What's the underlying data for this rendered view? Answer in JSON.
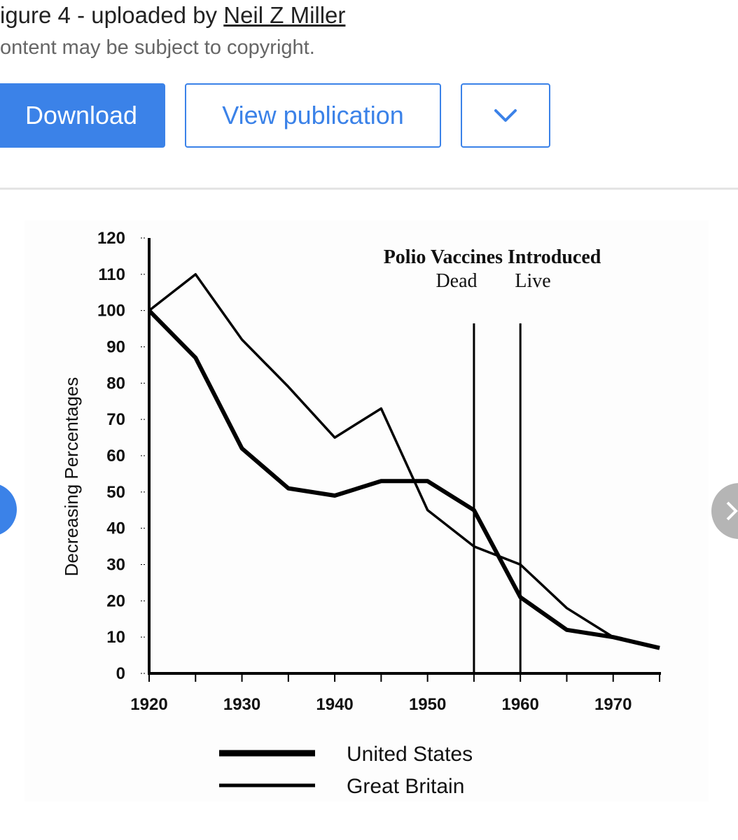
{
  "header": {
    "caption_prefix": "igure 4 - uploaded by ",
    "author": "Neil Z Miller",
    "copyright": "ontent may be subject to copyright."
  },
  "actions": {
    "download_label": "Download",
    "view_label": "View publication",
    "more_icon": "chevron-down-icon"
  },
  "colors": {
    "accent": "#3b82e8",
    "nav_right": "#b5b5b5"
  },
  "chart_data": {
    "type": "line",
    "title": "Polio Vaccines Introduced",
    "annotations": [
      {
        "label": "Dead",
        "x": 1955
      },
      {
        "label": "Live",
        "x": 1960
      }
    ],
    "xlabel": "",
    "ylabel": "Decreasing Percentages",
    "xlim": [
      1920,
      1975
    ],
    "ylim": [
      0,
      120
    ],
    "xticks": [
      1920,
      1930,
      1940,
      1950,
      1960,
      1970
    ],
    "yticks": [
      0,
      10,
      20,
      30,
      40,
      50,
      60,
      70,
      80,
      90,
      100,
      110,
      120
    ],
    "legend_position": "bottom-center",
    "series": [
      {
        "name": "United States",
        "style": "thick",
        "points": [
          [
            1920,
            100
          ],
          [
            1925,
            87
          ],
          [
            1930,
            62
          ],
          [
            1935,
            51
          ],
          [
            1940,
            49
          ],
          [
            1945,
            53
          ],
          [
            1950,
            53
          ],
          [
            1955,
            45
          ],
          [
            1960,
            21
          ],
          [
            1965,
            12
          ],
          [
            1970,
            10
          ],
          [
            1975,
            7
          ]
        ]
      },
      {
        "name": "Great Britain",
        "style": "thin",
        "points": [
          [
            1920,
            100
          ],
          [
            1925,
            110
          ],
          [
            1930,
            92
          ],
          [
            1935,
            79
          ],
          [
            1940,
            65
          ],
          [
            1945,
            73
          ],
          [
            1950,
            45
          ],
          [
            1955,
            35
          ],
          [
            1960,
            30
          ],
          [
            1965,
            18
          ],
          [
            1970,
            10
          ],
          [
            1975,
            7
          ]
        ]
      }
    ]
  }
}
